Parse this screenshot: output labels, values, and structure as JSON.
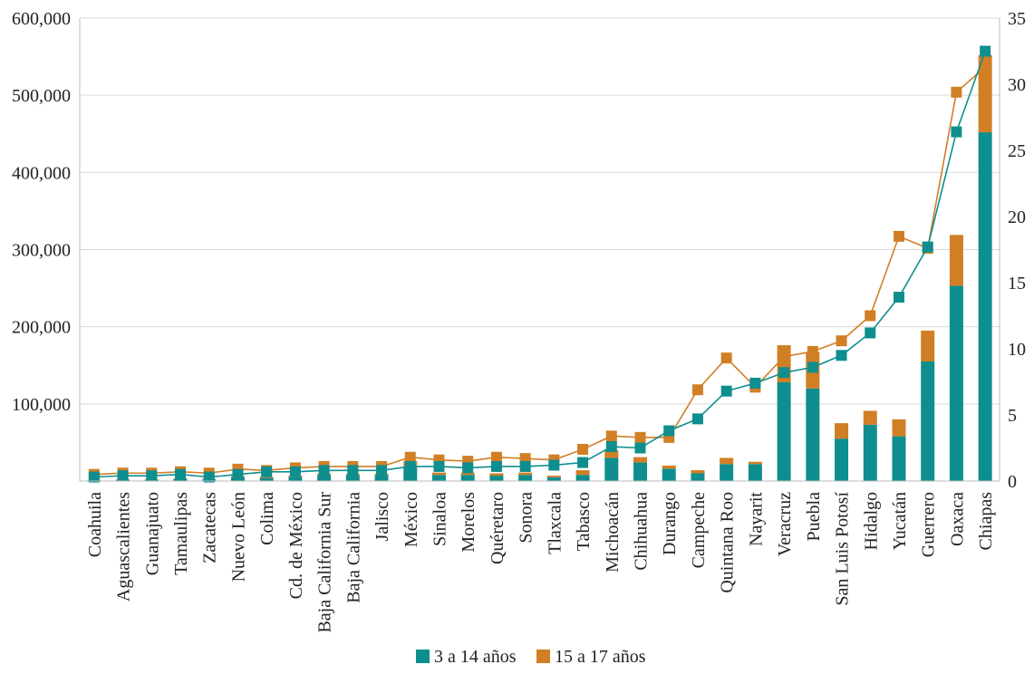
{
  "chart_data": {
    "type": "bar",
    "stacked": true,
    "categories": [
      "Coahuila",
      "Aguascalientes",
      "Guanajuato",
      "Tamaulipas",
      "Zacatecas",
      "Nuevo León",
      "Colima",
      "Cd. de México",
      "Baja California Sur",
      "Baja California",
      "Jalisco",
      "México",
      "Sinaloa",
      "Morelos",
      "Quéretaro",
      "Sonora",
      "Tlaxcala",
      "Tabasco",
      "Michoacán",
      "Chihuahua",
      "Durango",
      "Campeche",
      "Quintana Roo",
      "Nayarit",
      "Veracruz",
      "Puebla",
      "San Luis Potosí",
      "Hidalgo",
      "Yucatán",
      "Guerrero",
      "Oaxaca",
      "Chiapas"
    ],
    "series": [
      {
        "name": "3 a 14 años",
        "values": [
          1000,
          1500,
          1500,
          2500,
          2000,
          5000,
          4000,
          5000,
          7000,
          7000,
          7000,
          18000,
          8000,
          8000,
          7000,
          8000,
          5000,
          8000,
          30000,
          24000,
          16000,
          10000,
          22000,
          22000,
          128000,
          120000,
          55000,
          73000,
          58000,
          155000,
          253000,
          452000
        ],
        "color": "#0e8e8e"
      },
      {
        "name": "15 a 17 años",
        "values": [
          500,
          800,
          800,
          1000,
          800,
          1500,
          1500,
          2000,
          2500,
          2500,
          2500,
          8000,
          3000,
          3000,
          3000,
          3000,
          2000,
          6000,
          10000,
          7000,
          4000,
          4000,
          8000,
          3000,
          48000,
          47000,
          20000,
          18000,
          22000,
          40000,
          66000,
          100000
        ],
        "color": "#d17f25"
      }
    ],
    "lines": [
      {
        "name": "3 a 14 años (%)",
        "axis": "right",
        "values": [
          0.3,
          0.4,
          0.4,
          0.5,
          0.3,
          0.5,
          0.7,
          0.7,
          0.8,
          0.8,
          0.8,
          1.1,
          1.1,
          1.0,
          1.1,
          1.1,
          1.2,
          1.4,
          2.6,
          2.5,
          3.8,
          4.7,
          6.8,
          7.4,
          8.2,
          8.6,
          9.5,
          11.2,
          13.9,
          17.7,
          26.4,
          32.5
        ],
        "color": "#0e8e8e"
      },
      {
        "name": "15 a 17 años (%)",
        "axis": "right",
        "values": [
          0.5,
          0.6,
          0.6,
          0.7,
          0.6,
          0.9,
          0.8,
          1.0,
          1.1,
          1.1,
          1.1,
          1.8,
          1.6,
          1.5,
          1.8,
          1.7,
          1.6,
          2.4,
          3.4,
          3.3,
          3.3,
          6.9,
          9.3,
          7.1,
          9.4,
          9.8,
          10.6,
          12.5,
          18.5,
          17.6,
          29.4,
          31.3
        ],
        "color": "#d17f25"
      }
    ],
    "yAxisLeft": {
      "min": 0,
      "max": 600000,
      "ticks": [
        100000,
        200000,
        300000,
        400000,
        500000,
        600000
      ],
      "tick_labels": [
        "100,000",
        "200,000",
        "300,000",
        "400,000",
        "500,000",
        "600,000"
      ]
    },
    "yAxisRight": {
      "min": 0,
      "max": 35,
      "ticks": [
        0,
        5,
        10,
        15,
        20,
        25,
        30,
        35
      ],
      "tick_labels": [
        "0",
        "5",
        "10",
        "15",
        "20",
        "25",
        "30",
        "35"
      ]
    },
    "legend": {
      "position": "bottom",
      "entries": [
        "3 a 14 años",
        "15 a 17 años"
      ]
    },
    "grid": true
  }
}
